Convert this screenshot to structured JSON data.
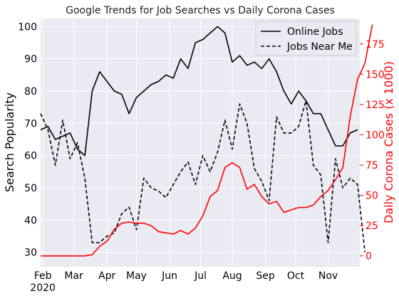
{
  "chart_data": {
    "type": "line",
    "title": "Google Trends for Job Searches vs Daily Corona Cases",
    "ylabel_left": "Search Popularity",
    "ylabel_right": "Daily Corona Cases (x 1000)",
    "ylim_left": [
      25.5,
      102.5
    ],
    "ylim_right": [
      -9,
      196
    ],
    "yticks_left": [
      30,
      40,
      50,
      60,
      70,
      80,
      90,
      100
    ],
    "yticks_right": [
      0,
      25,
      50,
      75,
      100,
      125,
      150,
      175
    ],
    "xticks": [
      {
        "week": 0.3,
        "label": "Feb",
        "sublabel": "2020"
      },
      {
        "week": 4.5,
        "label": "Mar",
        "sublabel": ""
      },
      {
        "week": 9.0,
        "label": "Apr",
        "sublabel": ""
      },
      {
        "week": 13.0,
        "label": "May",
        "sublabel": ""
      },
      {
        "week": 17.5,
        "label": "Jun",
        "sublabel": ""
      },
      {
        "week": 21.7,
        "label": "Jul",
        "sublabel": ""
      },
      {
        "week": 26.0,
        "label": "Aug",
        "sublabel": ""
      },
      {
        "week": 30.5,
        "label": "Sep",
        "sublabel": ""
      },
      {
        "week": 34.6,
        "label": "Oct",
        "sublabel": ""
      },
      {
        "week": 39.0,
        "label": "Nov",
        "sublabel": ""
      }
    ],
    "xrange": [
      0,
      43.3
    ],
    "grid": true,
    "legend_position": "top-right",
    "series": [
      {
        "name": "Online Jobs",
        "axis": "left",
        "color": "#000000",
        "style": "solid",
        "values": [
          68,
          69,
          65,
          66,
          67,
          62,
          60,
          80,
          86,
          83,
          80,
          79,
          73,
          78,
          80,
          82,
          83,
          85,
          84,
          90,
          87,
          95,
          96,
          98,
          100,
          98,
          89,
          91,
          88,
          89,
          87,
          90,
          86,
          80,
          76,
          80,
          77,
          73,
          73,
          68,
          63,
          63,
          67,
          68
        ]
      },
      {
        "name": "Jobs Near Me",
        "axis": "left",
        "color": "#000000",
        "style": "dashed",
        "values": [
          73,
          68,
          57,
          71,
          59,
          64,
          53,
          33,
          33,
          35,
          36,
          42,
          44,
          37,
          53,
          50,
          49,
          47,
          51,
          55,
          58,
          51,
          60,
          55,
          61,
          71,
          62,
          76,
          70,
          56,
          52,
          46,
          72,
          67,
          67,
          69,
          77,
          57,
          54,
          33,
          59,
          50,
          53,
          51,
          30
        ]
      },
      {
        "name": "",
        "axis": "right",
        "color": "#ff0000",
        "style": "solid",
        "values": [
          0,
          0,
          0,
          0,
          0,
          0,
          0,
          1,
          8,
          12,
          22,
          27,
          28,
          27,
          27,
          25,
          20,
          19,
          18,
          21,
          18,
          23,
          33,
          49,
          54,
          73,
          77,
          73,
          55,
          59,
          49,
          43,
          45,
          36,
          38,
          40,
          40,
          42,
          49,
          54,
          63,
          73,
          115,
          146,
          159,
          191
        ]
      }
    ]
  }
}
